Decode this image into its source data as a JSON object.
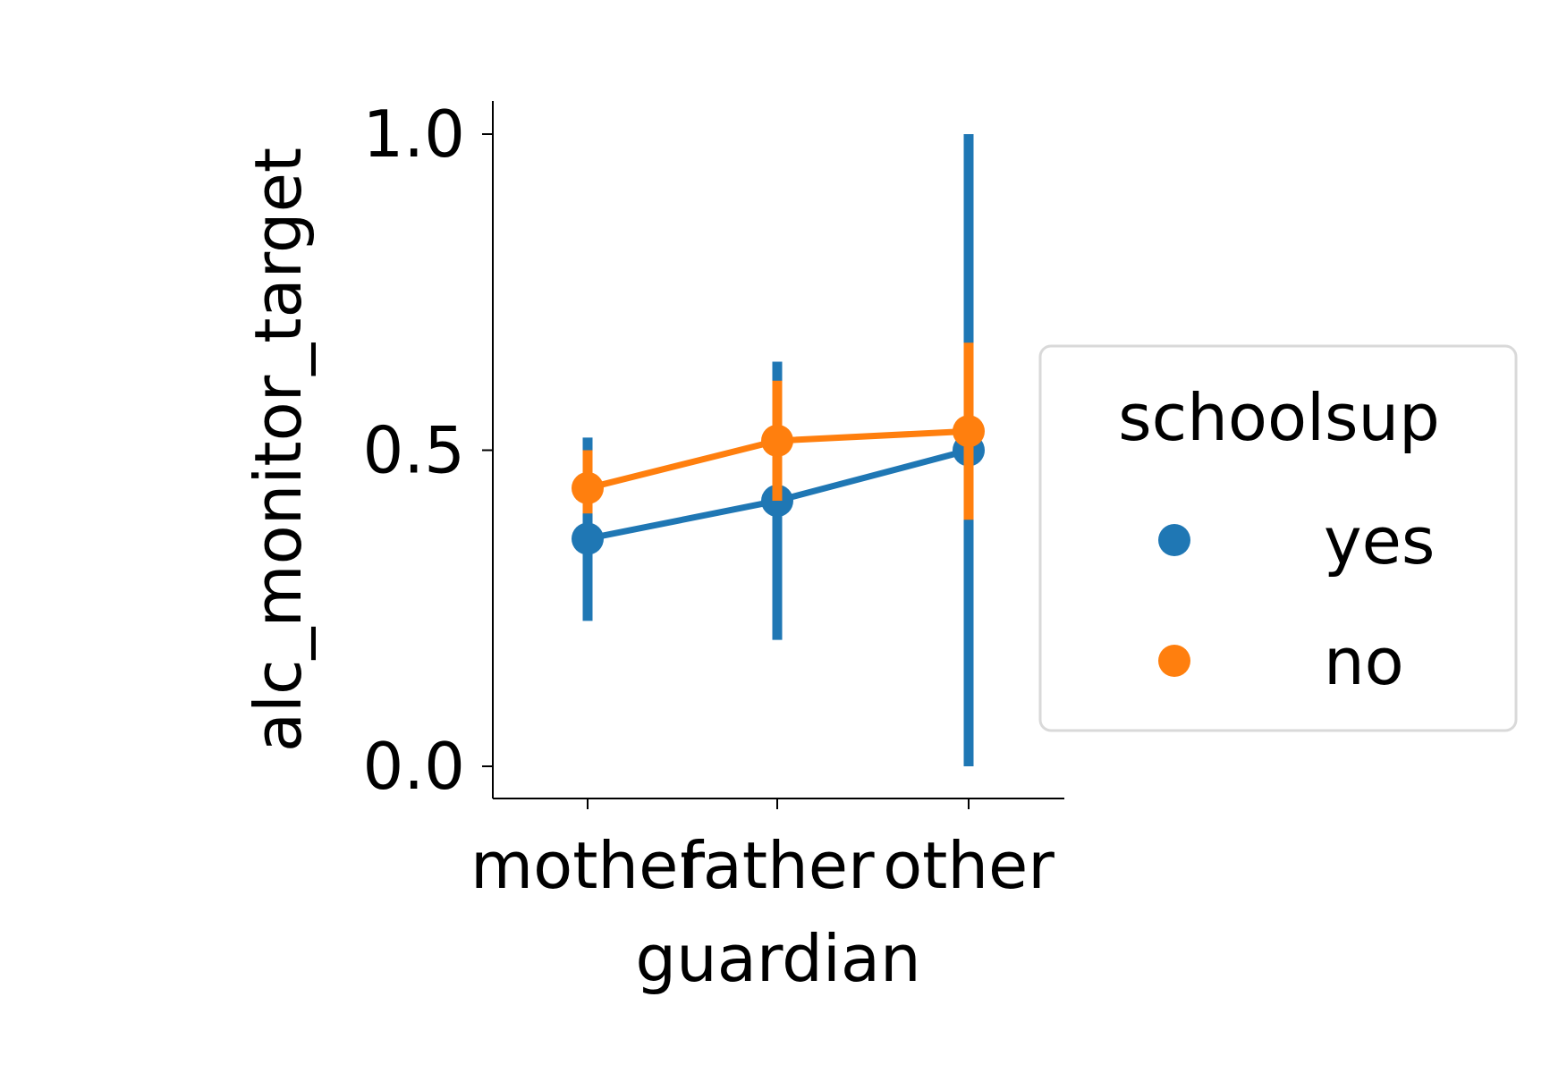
{
  "chart_data": {
    "type": "pointplot",
    "xlabel": "guardian",
    "ylabel": "alc_monitor_target",
    "categories": [
      "mother",
      "father",
      "other"
    ],
    "ylim": [
      -0.05,
      1.05
    ],
    "yticks": [
      0.0,
      0.5,
      1.0
    ],
    "ytick_labels": [
      "0.0",
      "0.5",
      "1.0"
    ],
    "grid": false,
    "legend": {
      "title": "schoolsup",
      "placement": "center-right outside",
      "entries": [
        "yes",
        "no"
      ]
    },
    "series": [
      {
        "name": "yes",
        "color": "#1f77b4",
        "values": [
          0.36,
          0.42,
          0.5
        ],
        "ci_low": [
          0.23,
          0.2,
          0.0
        ],
        "ci_high": [
          0.52,
          0.64,
          1.0
        ]
      },
      {
        "name": "no",
        "color": "#ff7f0e",
        "values": [
          0.44,
          0.515,
          0.53
        ],
        "ci_low": [
          0.4,
          0.42,
          0.39
        ],
        "ci_high": [
          0.5,
          0.61,
          0.67
        ]
      }
    ]
  }
}
